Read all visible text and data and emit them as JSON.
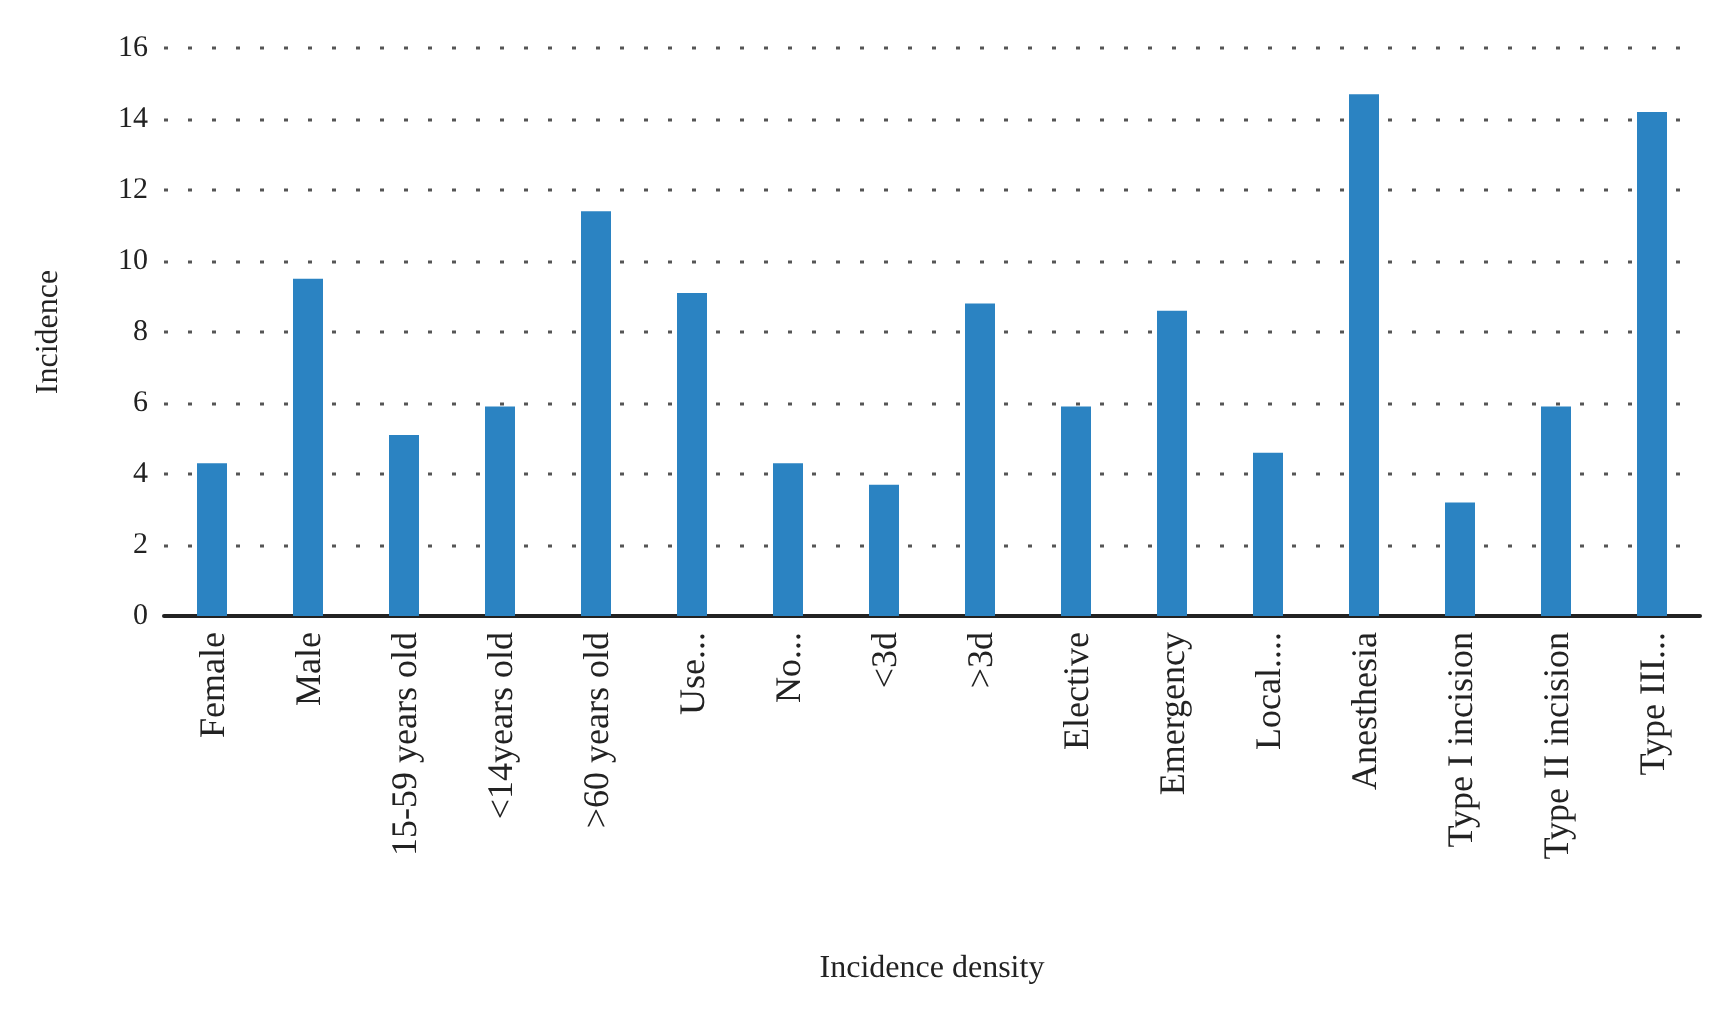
{
  "chart_data": {
    "type": "bar",
    "xlabel": "Incidence density",
    "ylabel": "Incidence",
    "categories": [
      "Female",
      "Male",
      "15-59 years old",
      "<14years old",
      ">60 years old",
      "Use...",
      "No...",
      "<3d",
      ">3d",
      "Elective",
      "Emergency",
      "Local....",
      "Anesthesia",
      "Type I incision",
      "Type II incision",
      "Type III..."
    ],
    "values": [
      4.3,
      9.5,
      5.1,
      5.9,
      11.4,
      9.1,
      4.3,
      3.7,
      8.8,
      5.9,
      8.6,
      4.6,
      14.7,
      3.2,
      5.9,
      14.2
    ],
    "color": "#2b83c2",
    "ylim": [
      0,
      16
    ],
    "yticks": [
      0,
      2,
      4,
      6,
      8,
      10,
      12,
      14,
      16
    ],
    "grid": "y"
  }
}
